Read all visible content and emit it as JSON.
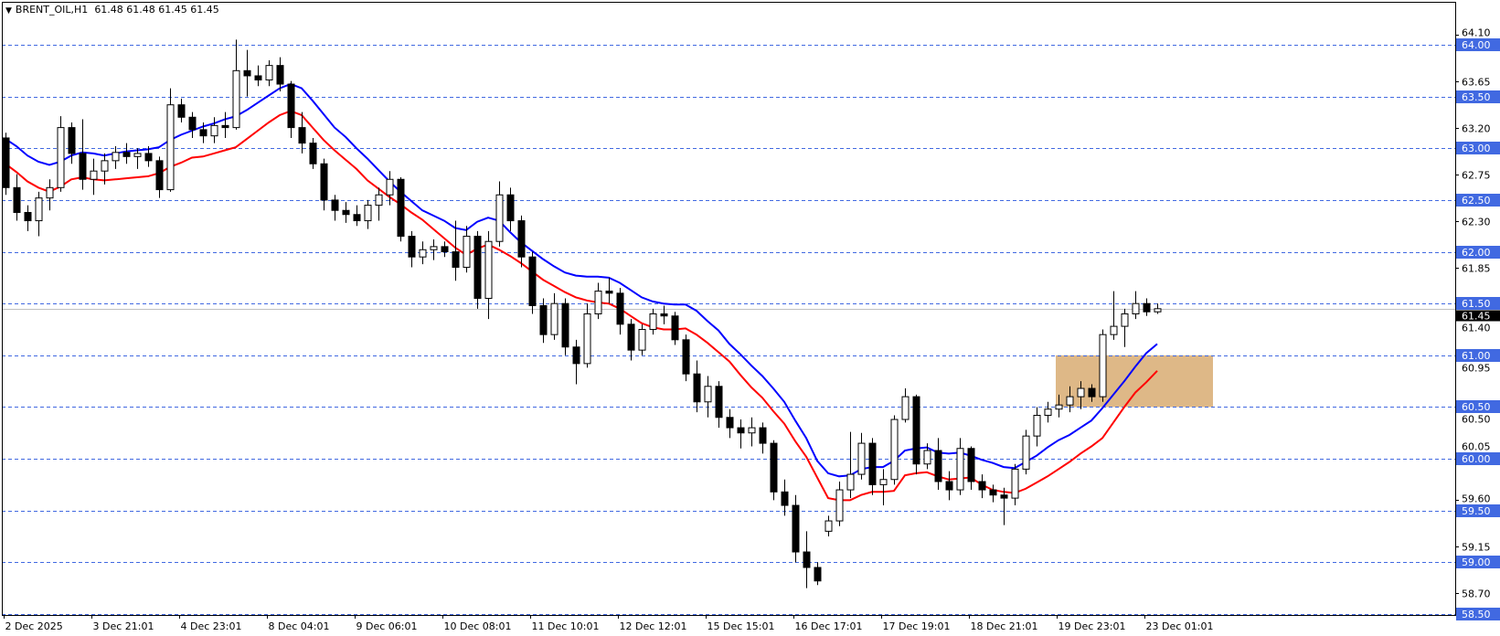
{
  "header": {
    "symbol": "BRENT_OIL,H1",
    "ohlc": "61.48 61.48 61.45 61.45"
  },
  "colors": {
    "ema_fast": "#0000FF",
    "ema_slow": "#FF0000",
    "level_line": "#4169E1",
    "level_label_bg": "#4169E1",
    "zone_fill": "#DEB887",
    "bull_body": "#FFFFFF",
    "bear_body": "#000000",
    "current_price_line": "#C0C0C0"
  },
  "chart_data": {
    "type": "candlestick",
    "title": "BRENT_OIL,H1",
    "ylim": [
      58.5,
      64.1
    ],
    "grid": false,
    "x_tick_labels": [
      "2 Dec 2025",
      "3 Dec 21:01",
      "4 Dec 23:01",
      "8 Dec 04:01",
      "9 Dec 06:01",
      "10 Dec 08:01",
      "11 Dec 10:01",
      "12 Dec 12:01",
      "15 Dec 15:01",
      "16 Dec 17:01",
      "17 Dec 19:01",
      "18 Dec 21:01",
      "19 Dec 23:01",
      "23 Dec 01:01"
    ],
    "y_tick_labels": [
      "64.10",
      "63.65",
      "63.20",
      "62.75",
      "62.30",
      "61.85",
      "61.40",
      "60.95",
      "60.50",
      "60.05",
      "59.60",
      "59.15",
      "58.70"
    ],
    "price_levels": [
      "64.00",
      "63.50",
      "63.00",
      "62.50",
      "62.00",
      "61.50",
      "61.00",
      "60.50",
      "60.00",
      "59.50",
      "59.00",
      "58.50"
    ],
    "current_price": "61.45",
    "zone": {
      "low": 60.5,
      "high": 61.0
    },
    "candles": [
      [
        63.1,
        63.15,
        62.55,
        62.62
      ],
      [
        62.62,
        62.75,
        62.3,
        62.38
      ],
      [
        62.38,
        62.45,
        62.2,
        62.3
      ],
      [
        62.3,
        62.58,
        62.15,
        62.52
      ],
      [
        62.52,
        62.7,
        62.4,
        62.62
      ],
      [
        62.62,
        63.31,
        62.58,
        63.2
      ],
      [
        63.2,
        63.25,
        62.85,
        62.95
      ],
      [
        62.95,
        63.28,
        62.6,
        62.7
      ],
      [
        62.7,
        62.9,
        62.55,
        62.78
      ],
      [
        62.78,
        62.95,
        62.65,
        62.88
      ],
      [
        62.88,
        63.02,
        62.8,
        62.96
      ],
      [
        62.96,
        63.05,
        62.85,
        62.92
      ],
      [
        62.92,
        63.0,
        62.8,
        62.95
      ],
      [
        62.95,
        63.02,
        62.82,
        62.88
      ],
      [
        62.88,
        62.92,
        62.52,
        62.6
      ],
      [
        62.6,
        63.58,
        62.58,
        63.42
      ],
      [
        63.42,
        63.48,
        63.25,
        63.3
      ],
      [
        63.3,
        63.35,
        63.1,
        63.18
      ],
      [
        63.18,
        63.25,
        63.05,
        63.12
      ],
      [
        63.12,
        63.3,
        63.05,
        63.22
      ],
      [
        63.22,
        63.35,
        63.1,
        63.2
      ],
      [
        63.2,
        64.05,
        63.18,
        63.75
      ],
      [
        63.75,
        63.95,
        63.5,
        63.7
      ],
      [
        63.7,
        63.8,
        63.6,
        63.66
      ],
      [
        63.66,
        63.85,
        63.6,
        63.8
      ],
      [
        63.8,
        63.88,
        63.55,
        63.62
      ],
      [
        63.62,
        63.65,
        63.1,
        63.2
      ],
      [
        63.2,
        63.35,
        62.95,
        63.05
      ],
      [
        63.05,
        63.1,
        62.8,
        62.85
      ],
      [
        62.85,
        62.9,
        62.4,
        62.5
      ],
      [
        62.5,
        62.55,
        62.3,
        62.4
      ],
      [
        62.4,
        62.48,
        62.28,
        62.36
      ],
      [
        62.36,
        62.45,
        62.25,
        62.3
      ],
      [
        62.3,
        62.5,
        62.22,
        62.45
      ],
      [
        62.45,
        62.62,
        62.3,
        62.55
      ],
      [
        62.55,
        62.78,
        62.45,
        62.7
      ],
      [
        62.7,
        62.72,
        62.1,
        62.15
      ],
      [
        62.15,
        62.2,
        61.85,
        61.95
      ],
      [
        61.95,
        62.1,
        61.88,
        62.02
      ],
      [
        62.02,
        62.12,
        61.92,
        62.05
      ],
      [
        62.05,
        62.1,
        61.95,
        62.0
      ],
      [
        62.0,
        62.3,
        61.72,
        61.85
      ],
      [
        61.85,
        62.25,
        61.8,
        62.15
      ],
      [
        62.15,
        62.2,
        61.45,
        61.55
      ],
      [
        61.55,
        62.2,
        61.35,
        62.1
      ],
      [
        62.1,
        62.68,
        62.05,
        62.55
      ],
      [
        62.55,
        62.62,
        62.2,
        62.3
      ],
      [
        62.3,
        62.35,
        61.85,
        61.95
      ],
      [
        61.95,
        62.0,
        61.4,
        61.48
      ],
      [
        61.48,
        61.55,
        61.12,
        61.2
      ],
      [
        61.2,
        61.6,
        61.15,
        61.5
      ],
      [
        61.5,
        61.55,
        61.0,
        61.08
      ],
      [
        61.08,
        61.15,
        60.72,
        60.92
      ],
      [
        60.92,
        61.5,
        60.88,
        61.4
      ],
      [
        61.4,
        61.7,
        61.35,
        61.62
      ],
      [
        61.62,
        61.75,
        61.5,
        61.6
      ],
      [
        61.6,
        61.65,
        61.2,
        61.3
      ],
      [
        61.3,
        61.35,
        60.95,
        61.05
      ],
      [
        61.05,
        61.3,
        61.0,
        61.25
      ],
      [
        61.25,
        61.45,
        61.2,
        61.4
      ],
      [
        61.4,
        61.48,
        61.3,
        61.38
      ],
      [
        61.38,
        61.42,
        61.1,
        61.15
      ],
      [
        61.15,
        61.2,
        60.75,
        60.82
      ],
      [
        60.82,
        60.95,
        60.45,
        60.55
      ],
      [
        60.55,
        60.8,
        60.4,
        60.7
      ],
      [
        60.7,
        60.75,
        60.3,
        60.4
      ],
      [
        60.4,
        60.48,
        60.2,
        60.3
      ],
      [
        60.3,
        60.38,
        60.1,
        60.25
      ],
      [
        60.25,
        60.4,
        60.12,
        60.3
      ],
      [
        60.3,
        60.35,
        60.05,
        60.15
      ],
      [
        60.15,
        60.18,
        59.6,
        59.68
      ],
      [
        59.68,
        59.8,
        59.45,
        59.55
      ],
      [
        59.55,
        59.65,
        59.0,
        59.1
      ],
      [
        59.1,
        59.3,
        58.75,
        58.95
      ],
      [
        58.95,
        59.0,
        58.78,
        58.82
      ],
      [
        59.3,
        59.45,
        59.25,
        59.4
      ],
      [
        59.4,
        59.78,
        59.35,
        59.7
      ],
      [
        59.7,
        60.26,
        59.62,
        59.85
      ],
      [
        59.85,
        60.25,
        59.8,
        60.15
      ],
      [
        60.15,
        60.2,
        59.65,
        59.75
      ],
      [
        59.75,
        59.9,
        59.55,
        59.8
      ],
      [
        59.8,
        60.42,
        59.75,
        60.38
      ],
      [
        60.38,
        60.68,
        60.35,
        60.6
      ],
      [
        60.6,
        60.62,
        59.85,
        59.95
      ],
      [
        59.95,
        60.15,
        59.9,
        60.08
      ],
      [
        60.08,
        60.2,
        59.7,
        59.78
      ],
      [
        59.78,
        59.88,
        59.6,
        59.7
      ],
      [
        59.7,
        60.2,
        59.65,
        60.1
      ],
      [
        60.1,
        60.12,
        59.7,
        59.78
      ],
      [
        59.78,
        59.85,
        59.62,
        59.7
      ],
      [
        59.7,
        59.75,
        59.58,
        59.65
      ],
      [
        59.65,
        59.72,
        59.36,
        59.62
      ],
      [
        59.62,
        59.95,
        59.55,
        59.9
      ],
      [
        59.9,
        60.28,
        59.85,
        60.22
      ],
      [
        60.22,
        60.5,
        60.12,
        60.42
      ],
      [
        60.42,
        60.55,
        60.35,
        60.48
      ],
      [
        60.48,
        60.62,
        60.4,
        60.52
      ],
      [
        60.52,
        60.7,
        60.45,
        60.6
      ],
      [
        60.6,
        60.75,
        60.48,
        60.68
      ],
      [
        60.68,
        60.72,
        60.55,
        60.6
      ],
      [
        60.6,
        61.25,
        60.55,
        61.2
      ],
      [
        61.2,
        61.62,
        61.15,
        61.28
      ],
      [
        61.28,
        61.45,
        61.08,
        61.4
      ],
      [
        61.4,
        61.62,
        61.35,
        61.5
      ],
      [
        61.5,
        61.55,
        61.38,
        61.42
      ],
      [
        61.42,
        61.5,
        61.4,
        61.45
      ]
    ],
    "series": [
      {
        "values": [
          63.09,
          63.02,
          62.93,
          62.87,
          62.84,
          62.87,
          62.93,
          62.96,
          62.95,
          62.93,
          62.95,
          62.97,
          62.98,
          62.99,
          63.01,
          63.08,
          63.13,
          63.17,
          63.21,
          63.24,
          63.28,
          63.31,
          63.37,
          63.44,
          63.51,
          63.58,
          63.62,
          63.58,
          63.46,
          63.33,
          63.2,
          63.11,
          63.0,
          62.9,
          62.79,
          62.68,
          62.58,
          62.49,
          62.4,
          62.35,
          62.3,
          62.23,
          62.21,
          62.29,
          62.33,
          62.3,
          62.19,
          62.09,
          62.01,
          61.93,
          61.86,
          61.8,
          61.77,
          61.76,
          61.76,
          61.75,
          61.7,
          61.63,
          61.56,
          61.52,
          61.5,
          61.49,
          61.49,
          61.43,
          61.33,
          61.24,
          61.11,
          61.01,
          60.9,
          60.8,
          60.68,
          60.55,
          60.37,
          60.2,
          59.98,
          59.86,
          59.83,
          59.84,
          59.9,
          59.92,
          59.92,
          59.98,
          60.08,
          60.1,
          60.11,
          60.06,
          60.05,
          60.06,
          60.03,
          59.99,
          59.96,
          59.92,
          59.91,
          59.97,
          60.03,
          60.11,
          60.18,
          60.23,
          60.3,
          60.37,
          60.49,
          60.62,
          60.75,
          60.89,
          61.02,
          61.11
        ],
        "color": "#0000FF"
      },
      {
        "values": [
          62.85,
          62.77,
          62.68,
          62.62,
          62.58,
          62.63,
          62.7,
          62.72,
          62.7,
          62.69,
          62.7,
          62.71,
          62.72,
          62.73,
          62.76,
          62.82,
          62.86,
          62.91,
          62.92,
          62.95,
          62.98,
          63.01,
          63.09,
          63.17,
          63.25,
          63.32,
          63.36,
          63.32,
          63.2,
          63.08,
          62.98,
          62.89,
          62.8,
          62.69,
          62.61,
          62.53,
          62.46,
          62.38,
          62.31,
          62.22,
          62.13,
          62.04,
          61.97,
          62.03,
          62.07,
          62.02,
          61.96,
          61.89,
          61.81,
          61.73,
          61.67,
          61.61,
          61.56,
          61.53,
          61.51,
          61.5,
          61.45,
          61.38,
          61.31,
          61.27,
          61.25,
          61.25,
          61.26,
          61.2,
          61.12,
          61.03,
          60.94,
          60.81,
          60.69,
          60.59,
          60.46,
          60.34,
          60.17,
          60.02,
          59.82,
          59.62,
          59.6,
          59.6,
          59.65,
          59.68,
          59.68,
          59.69,
          59.84,
          59.86,
          59.87,
          59.83,
          59.8,
          59.81,
          59.82,
          59.75,
          59.7,
          59.68,
          59.67,
          59.71,
          59.77,
          59.83,
          59.9,
          59.97,
          60.05,
          60.12,
          60.2,
          60.35,
          60.5,
          60.64,
          60.74,
          60.85
        ],
        "color": "#FF0000"
      }
    ]
  }
}
